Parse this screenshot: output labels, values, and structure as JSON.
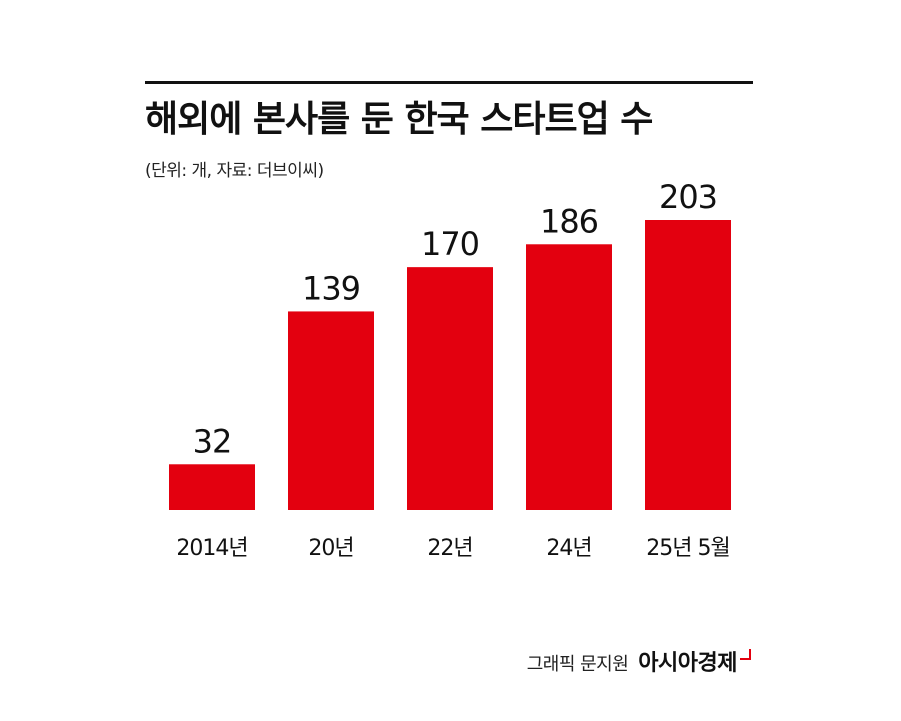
{
  "colors": {
    "bar": "#e3000f",
    "text": "#111111",
    "rule": "#111111",
    "background": "#ffffff"
  },
  "header": {
    "title": "해외에 본사를 둔 한국 스타트업 수",
    "subtitle": "(단위: 개, 자료: 더브이씨)"
  },
  "footer": {
    "credit": "그래픽 문지원",
    "brand": "아시아경제"
  },
  "chart_data": {
    "type": "bar",
    "categories": [
      "2014년",
      "20년",
      "22년",
      "24년",
      "25년 5월"
    ],
    "values": [
      32,
      139,
      170,
      186,
      203
    ],
    "title": "해외에 본사를 둔 한국 스타트업 수",
    "xlabel": "",
    "ylabel": "",
    "ylim": [
      0,
      203
    ],
    "grid": false,
    "legend": "none",
    "data_labels": true
  }
}
